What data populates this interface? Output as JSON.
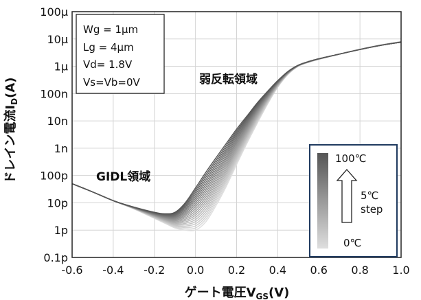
{
  "chart_data": {
    "type": "line",
    "xlabel": {
      "main": "ゲート電圧V",
      "sub": "GS",
      "unit": "(V)"
    },
    "ylabel": {
      "main": "ドレイン電流I",
      "sub": "D",
      "unit": "(A)"
    },
    "xlim": [
      -0.6,
      1.0
    ],
    "ylim": [
      1e-13,
      0.0001
    ],
    "yscale": "log",
    "grid": true,
    "x_ticks": [
      -0.6,
      -0.4,
      -0.2,
      0.0,
      0.2,
      0.4,
      0.6,
      0.8,
      1.0
    ],
    "x_tick_labels": [
      "-0.6",
      "-0.4",
      "-0.2",
      "0.0",
      "0.2",
      "0.4",
      "0.6",
      "0.8",
      "1.0"
    ],
    "y_ticks": [
      1e-13,
      1e-12,
      1e-11,
      1e-10,
      1e-09,
      1e-08,
      1e-07,
      1e-06,
      1e-05,
      0.0001
    ],
    "y_tick_labels": [
      "0.1p",
      "1p",
      "10p",
      "100p",
      "1n",
      "10n",
      "100n",
      "1μ",
      "10μ",
      "100μ"
    ],
    "params": [
      "Wg = 1μm",
      "Lg = 4μm",
      "Vd= 1.8V",
      "Vs=Vb=0V"
    ],
    "annotations": {
      "subthreshold": "弱反転領域",
      "gidl": "GIDL領域"
    },
    "legend": {
      "top": "100℃",
      "step": [
        "5℃",
        "step"
      ],
      "bottom": "0℃",
      "position": "bottom-right"
    },
    "series_temperatures_c": [
      0,
      5,
      10,
      15,
      20,
      25,
      30,
      35,
      40,
      45,
      50,
      55,
      60,
      65,
      70,
      75,
      80,
      85,
      90,
      95,
      100
    ],
    "series_color_range": [
      "#dedede",
      "#555555"
    ],
    "x": [
      -0.6,
      -0.5,
      -0.4,
      -0.3,
      -0.2,
      -0.15,
      -0.1,
      -0.05,
      0.0,
      0.05,
      0.1,
      0.15,
      0.2,
      0.25,
      0.3,
      0.35,
      0.4,
      0.45,
      0.5,
      0.55,
      0.6,
      0.7,
      0.8,
      0.9,
      1.0
    ],
    "curve_0C": [
      5e-11,
      2.5e-11,
      1.2e-11,
      6e-12,
      2.7e-12,
      1.8e-12,
      1.2e-12,
      1e-12,
      1e-12,
      2e-12,
      8e-12,
      4e-11,
      2.5e-10,
      1.5e-09,
      8e-09,
      4e-08,
      1.7e-07,
      5e-07,
      1e-06,
      1.4e-06,
      1.8e-06,
      2.8e-06,
      4.2e-06,
      6e-06,
      8e-06
    ],
    "curve_100C": [
      5e-11,
      2.5e-11,
      1.2e-11,
      7e-12,
      4.5e-12,
      4e-12,
      4.5e-12,
      1e-11,
      3.5e-11,
      1.3e-10,
      4.5e-10,
      1.5e-09,
      5e-09,
      1.5e-08,
      4.5e-08,
      1.2e-07,
      3e-07,
      6.5e-07,
      1.1e-06,
      1.5e-06,
      1.9e-06,
      2.8e-06,
      4.1e-06,
      5.8e-06,
      7.6e-06
    ]
  }
}
